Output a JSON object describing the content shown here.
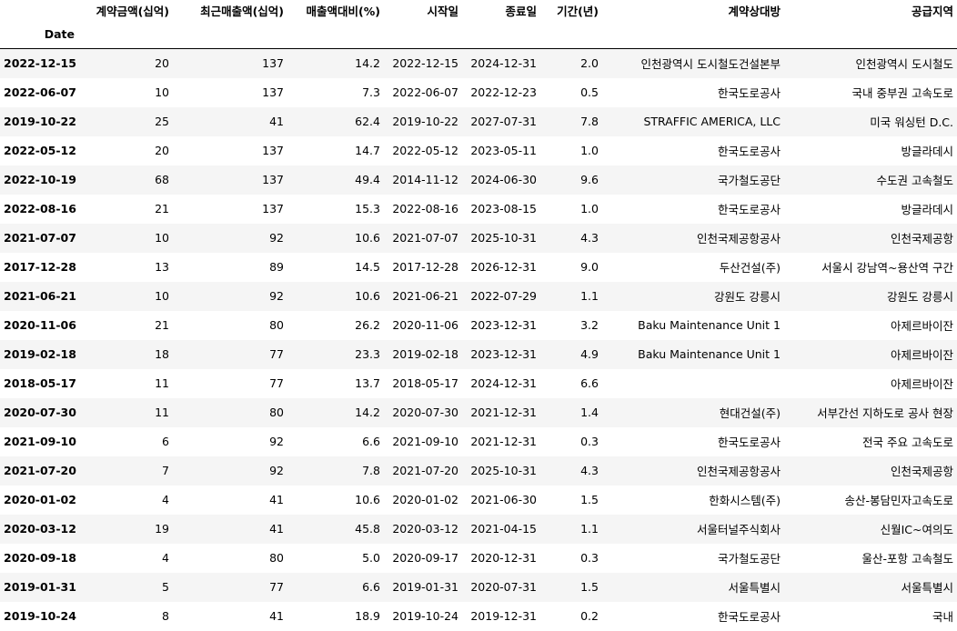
{
  "table": {
    "index_name": "Date",
    "columns": [
      "계약금액(십억)",
      "최근매출액(십억)",
      "매출액대비(%)",
      "시작일",
      "종료일",
      "기간(년)",
      "계약상대방",
      "공급지역"
    ],
    "rows": [
      {
        "date": "2022-12-15",
        "cells": [
          "20",
          "137",
          "14.2",
          "2022-12-15",
          "2024-12-31",
          "2.0",
          "인천광역시 도시철도건설본부",
          "인천광역시 도시철도"
        ]
      },
      {
        "date": "2022-06-07",
        "cells": [
          "10",
          "137",
          "7.3",
          "2022-06-07",
          "2022-12-23",
          "0.5",
          "한국도로공사",
          "국내 중부권 고속도로"
        ]
      },
      {
        "date": "2019-10-22",
        "cells": [
          "25",
          "41",
          "62.4",
          "2019-10-22",
          "2027-07-31",
          "7.8",
          "STRAFFIC AMERICA, LLC",
          "미국 워싱턴 D.C."
        ]
      },
      {
        "date": "2022-05-12",
        "cells": [
          "20",
          "137",
          "14.7",
          "2022-05-12",
          "2023-05-11",
          "1.0",
          "한국도로공사",
          "방글라데시"
        ]
      },
      {
        "date": "2022-10-19",
        "cells": [
          "68",
          "137",
          "49.4",
          "2014-11-12",
          "2024-06-30",
          "9.6",
          "국가철도공단",
          "수도권 고속철도"
        ]
      },
      {
        "date": "2022-08-16",
        "cells": [
          "21",
          "137",
          "15.3",
          "2022-08-16",
          "2023-08-15",
          "1.0",
          "한국도로공사",
          "방글라데시"
        ]
      },
      {
        "date": "2021-07-07",
        "cells": [
          "10",
          "92",
          "10.6",
          "2021-07-07",
          "2025-10-31",
          "4.3",
          "인천국제공항공사",
          "인천국제공항"
        ]
      },
      {
        "date": "2017-12-28",
        "cells": [
          "13",
          "89",
          "14.5",
          "2017-12-28",
          "2026-12-31",
          "9.0",
          "두산건설(주)",
          "서울시 강남역~용산역 구간"
        ]
      },
      {
        "date": "2021-06-21",
        "cells": [
          "10",
          "92",
          "10.6",
          "2021-06-21",
          "2022-07-29",
          "1.1",
          "강원도 강릉시",
          "강원도 강릉시"
        ]
      },
      {
        "date": "2020-11-06",
        "cells": [
          "21",
          "80",
          "26.2",
          "2020-11-06",
          "2023-12-31",
          "3.2",
          "Baku Maintenance Unit 1",
          "아제르바이잔"
        ]
      },
      {
        "date": "2019-02-18",
        "cells": [
          "18",
          "77",
          "23.3",
          "2019-02-18",
          "2023-12-31",
          "4.9",
          "Baku Maintenance Unit 1",
          "아제르바이잔"
        ]
      },
      {
        "date": "2018-05-17",
        "cells": [
          "11",
          "77",
          "13.7",
          "2018-05-17",
          "2024-12-31",
          "6.6",
          "",
          "아제르바이잔"
        ]
      },
      {
        "date": "2020-07-30",
        "cells": [
          "11",
          "80",
          "14.2",
          "2020-07-30",
          "2021-12-31",
          "1.4",
          "현대건설(주)",
          "서부간선 지하도로 공사 현장"
        ]
      },
      {
        "date": "2021-09-10",
        "cells": [
          "6",
          "92",
          "6.6",
          "2021-09-10",
          "2021-12-31",
          "0.3",
          "한국도로공사",
          "전국 주요 고속도로"
        ]
      },
      {
        "date": "2021-07-20",
        "cells": [
          "7",
          "92",
          "7.8",
          "2021-07-20",
          "2025-10-31",
          "4.3",
          "인천국제공항공사",
          "인천국제공항"
        ]
      },
      {
        "date": "2020-01-02",
        "cells": [
          "4",
          "41",
          "10.6",
          "2020-01-02",
          "2021-06-30",
          "1.5",
          "한화시스템(주)",
          "송산-봉담민자고속도로"
        ]
      },
      {
        "date": "2020-03-12",
        "cells": [
          "19",
          "41",
          "45.8",
          "2020-03-12",
          "2021-04-15",
          "1.1",
          "서울터널주식회사",
          "신월IC~여의도"
        ]
      },
      {
        "date": "2020-09-18",
        "cells": [
          "4",
          "80",
          "5.0",
          "2020-09-17",
          "2020-12-31",
          "0.3",
          "국가철도공단",
          "울산-포항 고속철도"
        ]
      },
      {
        "date": "2019-01-31",
        "cells": [
          "5",
          "77",
          "6.6",
          "2019-01-31",
          "2020-07-31",
          "1.5",
          "서울특별시",
          "서울특별시"
        ]
      },
      {
        "date": "2019-10-24",
        "cells": [
          "8",
          "41",
          "18.9",
          "2019-10-24",
          "2019-12-31",
          "0.2",
          "한국도로공사",
          "국내"
        ]
      }
    ]
  }
}
